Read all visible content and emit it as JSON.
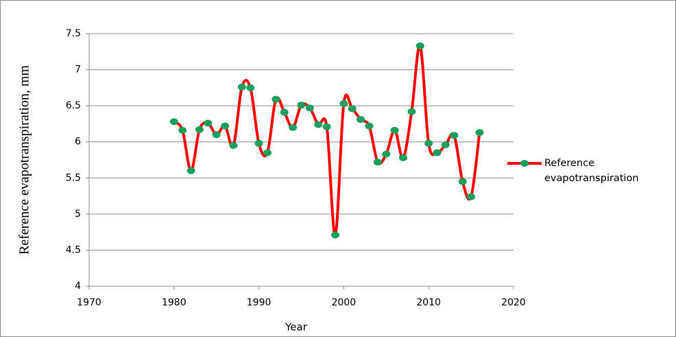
{
  "chart_data": {
    "type": "line",
    "x_label": "Year",
    "y_label": "Reference evapotranspiration, mm",
    "x": [
      1980,
      1981,
      1982,
      1983,
      1984,
      1985,
      1986,
      1987,
      1988,
      1989,
      1990,
      1991,
      1992,
      1993,
      1994,
      1995,
      1996,
      1997,
      1998,
      1999,
      2000,
      2001,
      2002,
      2003,
      2004,
      2005,
      2006,
      2007,
      2008,
      2009,
      2010,
      2011,
      2012,
      2013,
      2014,
      2015,
      2016
    ],
    "series": [
      {
        "name": "Reference evapotranspiration",
        "color": "#ff0000",
        "marker_color": "#17a05d",
        "values": [
          6.28,
          6.16,
          5.6,
          6.17,
          6.26,
          6.1,
          6.22,
          5.95,
          6.76,
          6.75,
          5.98,
          5.85,
          6.59,
          6.41,
          6.2,
          6.51,
          6.47,
          6.24,
          6.21,
          4.71,
          6.53,
          6.46,
          6.31,
          6.22,
          5.72,
          5.83,
          6.16,
          5.78,
          6.42,
          7.33,
          5.98,
          5.85,
          5.96,
          6.09,
          5.45,
          5.24,
          6.13
        ]
      }
    ],
    "xlim": [
      1970,
      2020
    ],
    "xticks": [
      1970,
      1980,
      1990,
      2000,
      2010,
      2020
    ],
    "ylim": [
      4,
      7.5
    ],
    "yticks": [
      4,
      4.5,
      5,
      5.5,
      6,
      6.5,
      7,
      7.5
    ],
    "grid": true,
    "smooth": true,
    "legend": "right"
  }
}
